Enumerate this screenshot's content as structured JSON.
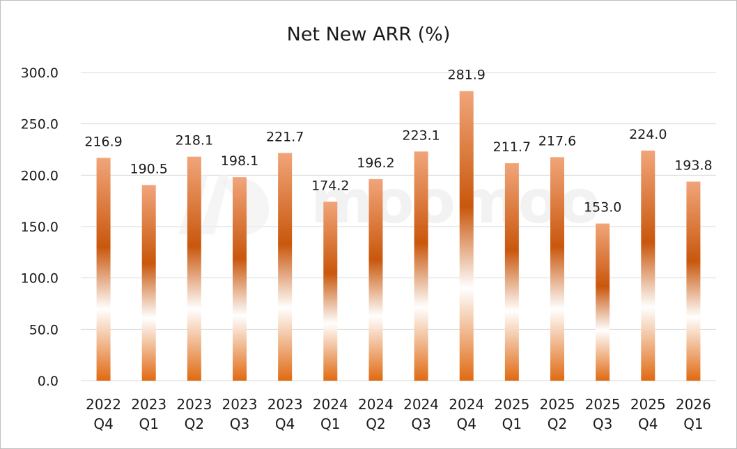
{
  "chart_data": {
    "type": "bar",
    "title": "Net New ARR (%)",
    "xlabel": "",
    "ylabel": "",
    "ylim": [
      0,
      300
    ],
    "yticks": [
      "0.0",
      "50.0",
      "100.0",
      "150.0",
      "200.0",
      "250.0",
      "300.0"
    ],
    "grid": true,
    "legend": "none",
    "categories": [
      [
        "2022",
        "Q4"
      ],
      [
        "2023",
        "Q1"
      ],
      [
        "2023",
        "Q2"
      ],
      [
        "2023",
        "Q3"
      ],
      [
        "2023",
        "Q4"
      ],
      [
        "2024",
        "Q1"
      ],
      [
        "2024",
        "Q2"
      ],
      [
        "2024",
        "Q3"
      ],
      [
        "2024",
        "Q4"
      ],
      [
        "2025",
        "Q1"
      ],
      [
        "2025",
        "Q2"
      ],
      [
        "2025",
        "Q3"
      ],
      [
        "2025",
        "Q4"
      ],
      [
        "2026",
        "Q1"
      ]
    ],
    "values": [
      216.9,
      190.5,
      218.1,
      198.1,
      221.7,
      174.2,
      196.2,
      223.1,
      281.9,
      211.7,
      217.6,
      153.0,
      224.0,
      193.8
    ],
    "value_labels": [
      "216.9",
      "190.5",
      "218.1",
      "198.1",
      "221.7",
      "174.2",
      "196.2",
      "223.1",
      "281.9",
      "211.7",
      "217.6",
      "153.0",
      "224.0",
      "193.8"
    ]
  },
  "colors": {
    "bar_dark": "#e06a12",
    "bar_mid": "#c9570c",
    "bar_light": "#ffffff",
    "bar_top": "#f1a57a",
    "grid": "#d9d9d9"
  },
  "watermark": {
    "text": "moomoo",
    "icon": "moomoo-logo-icon"
  }
}
